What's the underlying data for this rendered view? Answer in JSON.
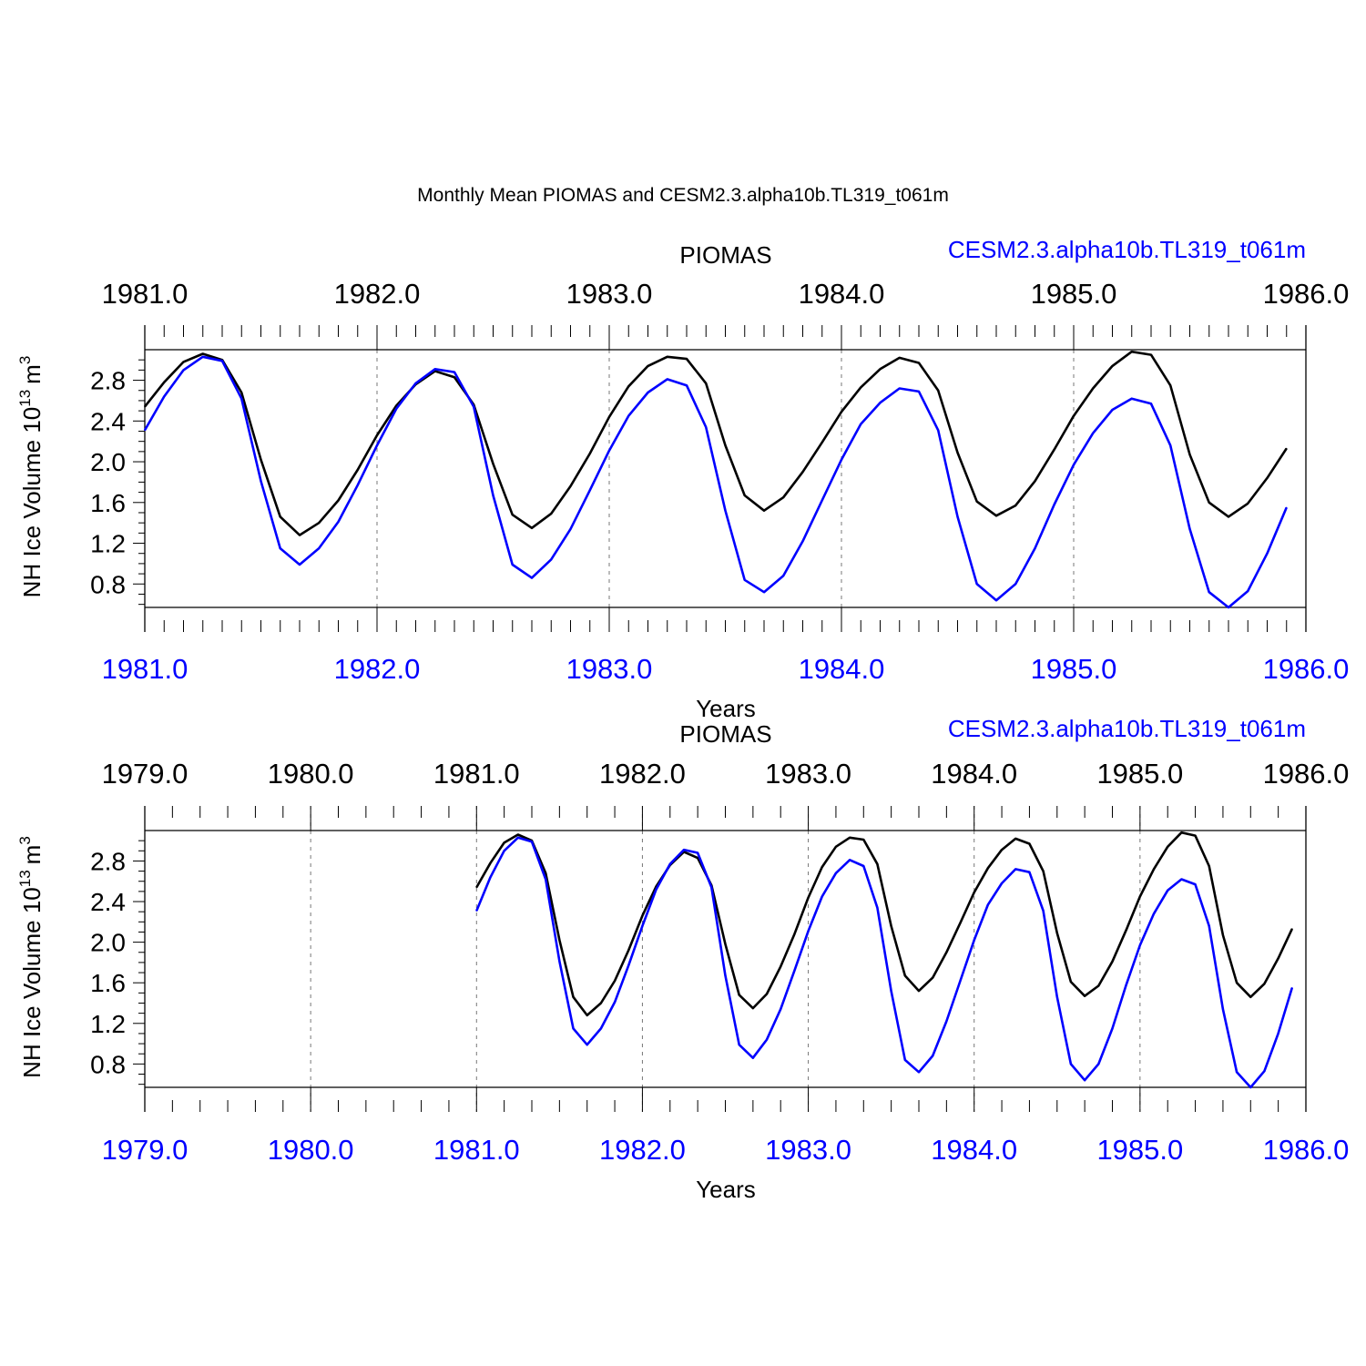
{
  "title": "Monthly Mean PIOMAS and CESM2.3.alpha10b.TL319_t061m",
  "colors": {
    "piomas": "#000000",
    "cesm": "#0000ff",
    "axis": "#000000"
  },
  "chart_data": [
    {
      "type": "line",
      "xlabel": "Years",
      "ylabel": "NH Ice Volume 10",
      "ylabel_exp": "13",
      "ylabel_unit": "m",
      "ylabel_unit_exp": "3",
      "legend_left": "PIOMAS",
      "legend_right": "CESM2.3.alpha10b.TL319_t061m",
      "xlim": [
        1981,
        1986
      ],
      "ylim": [
        0.57,
        3.1
      ],
      "yticks": [
        "0.8",
        "1.2",
        "1.6",
        "2.0",
        "2.4",
        "2.8"
      ],
      "yticks_values": [
        0.8,
        1.2,
        1.6,
        2.0,
        2.4,
        2.8
      ],
      "top_ticks": [
        "1981.0",
        "1982.0",
        "1983.0",
        "1984.0",
        "1985.0",
        "1986.0"
      ],
      "bottom_ticks": [
        "1981.0",
        "1982.0",
        "1983.0",
        "1984.0",
        "1985.0",
        "1986.0"
      ],
      "tick_values": [
        1981,
        1982,
        1983,
        1984,
        1985,
        1986
      ],
      "x_start": 1981.0,
      "x_step": 0.08333,
      "series": [
        {
          "name": "PIOMAS",
          "values": [
            2.54,
            2.78,
            2.98,
            3.06,
            3.0,
            2.68,
            2.02,
            1.46,
            1.28,
            1.4,
            1.62,
            1.92,
            2.26,
            2.55,
            2.76,
            2.89,
            2.83,
            2.56,
            1.98,
            1.48,
            1.35,
            1.49,
            1.76,
            2.08,
            2.44,
            2.74,
            2.94,
            3.03,
            3.01,
            2.77,
            2.16,
            1.67,
            1.52,
            1.65,
            1.9,
            2.19,
            2.49,
            2.73,
            2.91,
            3.02,
            2.97,
            2.7,
            2.09,
            1.61,
            1.47,
            1.57,
            1.81,
            2.12,
            2.45,
            2.72,
            2.94,
            3.08,
            3.05,
            2.75,
            2.07,
            1.6,
            1.46,
            1.59,
            1.84,
            2.13
          ]
        },
        {
          "name": "CESM2.3.alpha10b.TL319_t061m",
          "values": [
            2.31,
            2.64,
            2.9,
            3.03,
            2.99,
            2.62,
            1.81,
            1.15,
            0.99,
            1.15,
            1.41,
            1.77,
            2.16,
            2.52,
            2.77,
            2.91,
            2.88,
            2.54,
            1.67,
            0.99,
            0.86,
            1.04,
            1.34,
            1.72,
            2.11,
            2.45,
            2.68,
            2.81,
            2.75,
            2.34,
            1.52,
            0.84,
            0.72,
            0.88,
            1.22,
            1.62,
            2.02,
            2.37,
            2.58,
            2.72,
            2.69,
            2.31,
            1.46,
            0.8,
            0.64,
            0.8,
            1.15,
            1.58,
            1.97,
            2.28,
            2.51,
            2.62,
            2.57,
            2.16,
            1.34,
            0.72,
            0.57,
            0.73,
            1.1,
            1.55
          ]
        }
      ]
    },
    {
      "type": "line",
      "xlabel": "Years",
      "ylabel": "NH Ice Volume 10",
      "ylabel_exp": "13",
      "ylabel_unit": "m",
      "ylabel_unit_exp": "3",
      "legend_left": "PIOMAS",
      "legend_right": "CESM2.3.alpha10b.TL319_t061m",
      "xlim": [
        1979,
        1986
      ],
      "ylim": [
        0.57,
        3.1
      ],
      "yticks": [
        "0.8",
        "1.2",
        "1.6",
        "2.0",
        "2.4",
        "2.8"
      ],
      "yticks_values": [
        0.8,
        1.2,
        1.6,
        2.0,
        2.4,
        2.8
      ],
      "top_ticks": [
        "1979.0",
        "1980.0",
        "1981.0",
        "1982.0",
        "1983.0",
        "1984.0",
        "1985.0",
        "1986.0"
      ],
      "bottom_ticks": [
        "1979.0",
        "1980.0",
        "1981.0",
        "1982.0",
        "1983.0",
        "1984.0",
        "1985.0",
        "1986.0"
      ],
      "tick_values": [
        1979,
        1980,
        1981,
        1982,
        1983,
        1984,
        1985,
        1986
      ],
      "x_start": 1981.0,
      "x_step": 0.08333,
      "series": [
        {
          "name": "PIOMAS",
          "values": [
            2.54,
            2.78,
            2.98,
            3.06,
            3.0,
            2.68,
            2.02,
            1.46,
            1.28,
            1.4,
            1.62,
            1.92,
            2.26,
            2.55,
            2.76,
            2.89,
            2.83,
            2.56,
            1.98,
            1.48,
            1.35,
            1.49,
            1.76,
            2.08,
            2.44,
            2.74,
            2.94,
            3.03,
            3.01,
            2.77,
            2.16,
            1.67,
            1.52,
            1.65,
            1.9,
            2.19,
            2.49,
            2.73,
            2.91,
            3.02,
            2.97,
            2.7,
            2.09,
            1.61,
            1.47,
            1.57,
            1.81,
            2.12,
            2.45,
            2.72,
            2.94,
            3.08,
            3.05,
            2.75,
            2.07,
            1.6,
            1.46,
            1.59,
            1.84,
            2.13
          ]
        },
        {
          "name": "CESM2.3.alpha10b.TL319_t061m",
          "values": [
            2.31,
            2.64,
            2.9,
            3.03,
            2.99,
            2.62,
            1.81,
            1.15,
            0.99,
            1.15,
            1.41,
            1.77,
            2.16,
            2.52,
            2.77,
            2.91,
            2.88,
            2.54,
            1.67,
            0.99,
            0.86,
            1.04,
            1.34,
            1.72,
            2.11,
            2.45,
            2.68,
            2.81,
            2.75,
            2.34,
            1.52,
            0.84,
            0.72,
            0.88,
            1.22,
            1.62,
            2.02,
            2.37,
            2.58,
            2.72,
            2.69,
            2.31,
            1.46,
            0.8,
            0.64,
            0.8,
            1.15,
            1.58,
            1.97,
            2.28,
            2.51,
            2.62,
            2.57,
            2.16,
            1.34,
            0.72,
            0.57,
            0.73,
            1.1,
            1.55
          ]
        }
      ]
    }
  ]
}
